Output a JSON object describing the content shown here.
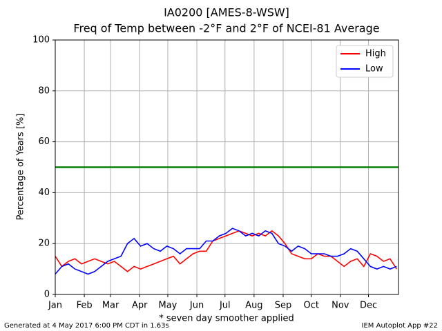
{
  "chart_data": {
    "type": "line",
    "title": "IA0200 [AMES-8-WSW]",
    "subtitle": "Freq of Temp between -2°F and 2°F of NCEI-81 Average",
    "y_label": "Percentage of Years [%]",
    "x_label": "* seven day smoother applied",
    "footer_left": "Generated at 4 May 2017 6:00 PM CDT in 1.63s",
    "footer_right": "IEM Autoplot App #22",
    "x": [
      1,
      8,
      15,
      22,
      29,
      36,
      43,
      50,
      57,
      64,
      71,
      78,
      85,
      92,
      99,
      106,
      113,
      120,
      127,
      134,
      141,
      148,
      155,
      162,
      169,
      176,
      183,
      190,
      197,
      204,
      211,
      218,
      225,
      232,
      239,
      246,
      253,
      260,
      267,
      274,
      281,
      288,
      295,
      302,
      309,
      316,
      323,
      330,
      337,
      344,
      351,
      358,
      365
    ],
    "series": [
      {
        "name": "High",
        "color": "#ff0000",
        "values": [
          15,
          11,
          13,
          14,
          12,
          13,
          14,
          13,
          12,
          13,
          11,
          9,
          11,
          10,
          11,
          12,
          13,
          14,
          15,
          12,
          14,
          16,
          17,
          17,
          21,
          22,
          23,
          24,
          25,
          24,
          23,
          24,
          23,
          25,
          23,
          20,
          16,
          15,
          14,
          14,
          16,
          15,
          15,
          13,
          11,
          13,
          14,
          11,
          16,
          15,
          13,
          14,
          10
        ]
      },
      {
        "name": "Low",
        "color": "#0000ff",
        "values": [
          8,
          11,
          12,
          10,
          9,
          8,
          9,
          11,
          13,
          14,
          15,
          20,
          22,
          19,
          20,
          18,
          17,
          19,
          18,
          16,
          18,
          18,
          18,
          21,
          21,
          23,
          24,
          26,
          25,
          23,
          24,
          23,
          25,
          24,
          20,
          19,
          17,
          19,
          18,
          16,
          16,
          16,
          15,
          15,
          16,
          18,
          17,
          14,
          11,
          10,
          11,
          10,
          11
        ]
      }
    ],
    "hline": {
      "value": 50,
      "color": "#008000"
    },
    "xlim": [
      1,
      367
    ],
    "xticks": [
      {
        "value": 1,
        "label": "Jan"
      },
      {
        "value": 32,
        "label": "Feb"
      },
      {
        "value": 60,
        "label": "Mar"
      },
      {
        "value": 91,
        "label": "Apr"
      },
      {
        "value": 121,
        "label": "May"
      },
      {
        "value": 152,
        "label": "Jun"
      },
      {
        "value": 182,
        "label": "Jul"
      },
      {
        "value": 213,
        "label": "Aug"
      },
      {
        "value": 244,
        "label": "Sep"
      },
      {
        "value": 274,
        "label": "Oct"
      },
      {
        "value": 305,
        "label": "Nov"
      },
      {
        "value": 335,
        "label": "Dec"
      }
    ],
    "ylim": [
      0,
      100
    ],
    "yticks": [
      0,
      20,
      40,
      60,
      80,
      100
    ],
    "grid": true,
    "legend": "upper right"
  }
}
